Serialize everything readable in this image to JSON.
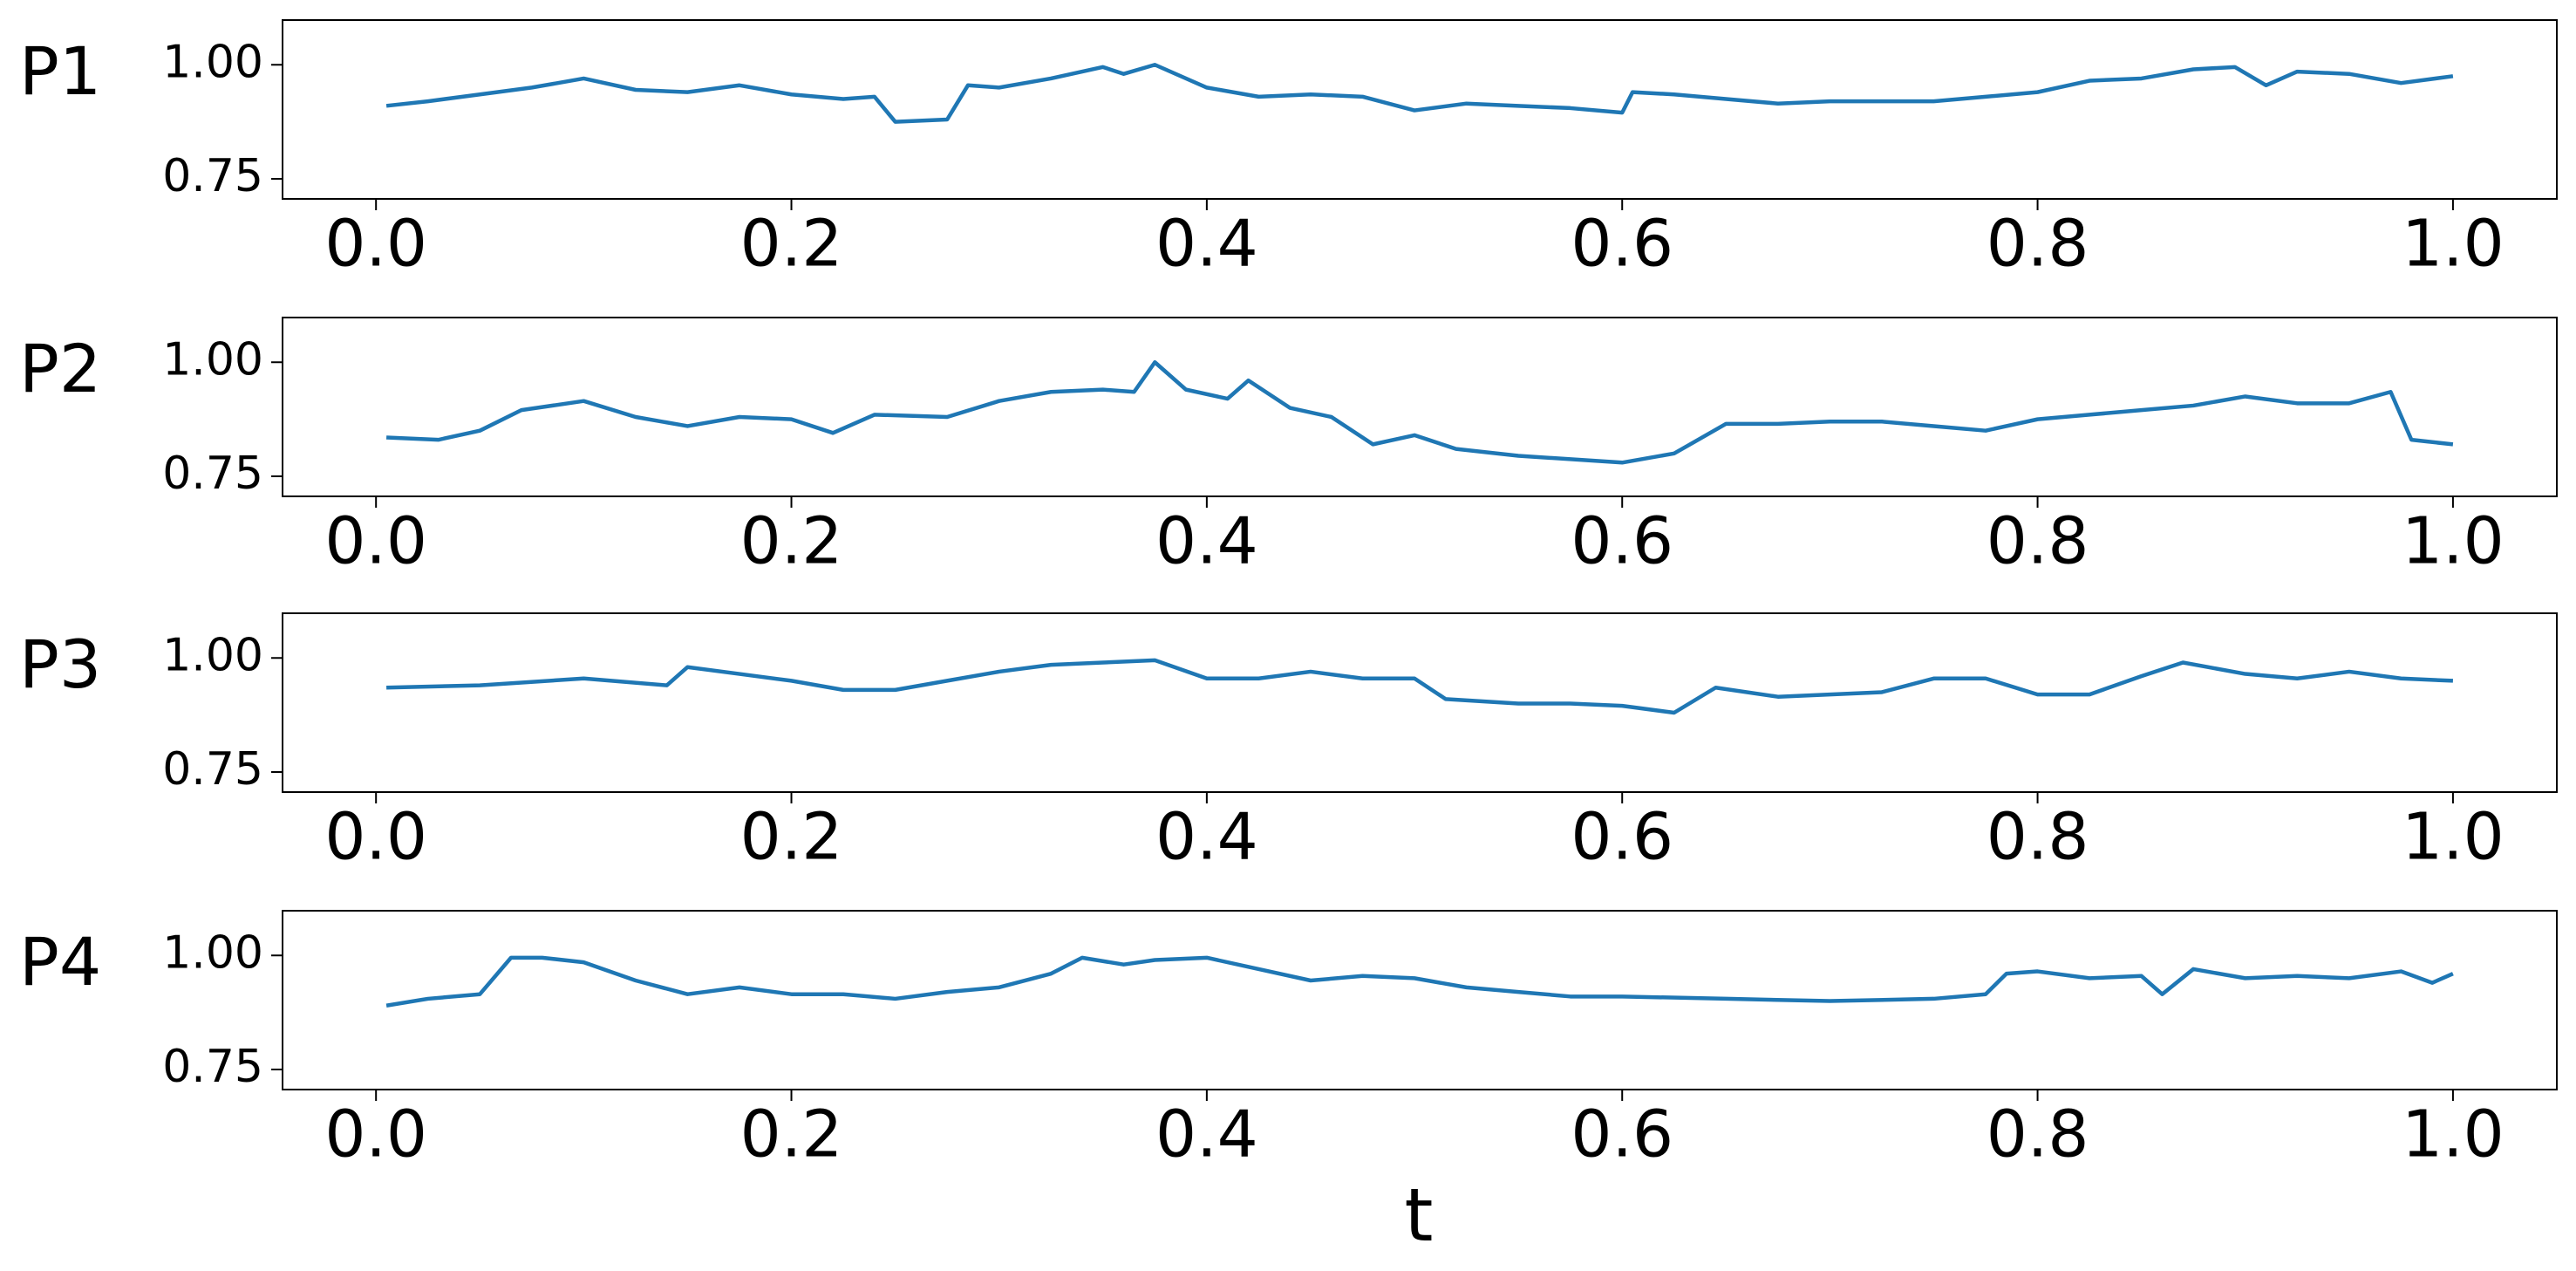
{
  "chart_data": [
    {
      "type": "line",
      "ylabel": "P1",
      "x": [
        0.005,
        0.025,
        0.05,
        0.075,
        0.1,
        0.125,
        0.15,
        0.175,
        0.2,
        0.225,
        0.24,
        0.25,
        0.275,
        0.285,
        0.3,
        0.325,
        0.35,
        0.36,
        0.375,
        0.4,
        0.425,
        0.45,
        0.475,
        0.5,
        0.525,
        0.55,
        0.575,
        0.6,
        0.605,
        0.625,
        0.65,
        0.675,
        0.7,
        0.725,
        0.75,
        0.775,
        0.8,
        0.825,
        0.85,
        0.875,
        0.895,
        0.91,
        0.925,
        0.95,
        0.975,
        1.0
      ],
      "series": [
        {
          "color": "#1f77b4",
          "values": [
            0.91,
            0.92,
            0.935,
            0.95,
            0.97,
            0.945,
            0.94,
            0.955,
            0.935,
            0.925,
            0.93,
            0.875,
            0.88,
            0.955,
            0.95,
            0.97,
            0.995,
            0.98,
            1.0,
            0.95,
            0.93,
            0.935,
            0.93,
            0.9,
            0.915,
            0.91,
            0.905,
            0.895,
            0.94,
            0.935,
            0.925,
            0.915,
            0.92,
            0.92,
            0.92,
            0.93,
            0.94,
            0.965,
            0.97,
            0.99,
            0.995,
            0.955,
            0.985,
            0.98,
            0.96,
            0.975
          ]
        }
      ],
      "xlim": [
        -0.045,
        1.05
      ],
      "ylim": [
        0.706,
        1.098
      ],
      "xticks": [
        {
          "value": 0,
          "label": "0.0"
        },
        {
          "value": 0.2,
          "label": "0.2"
        },
        {
          "value": 0.4,
          "label": "0.4"
        },
        {
          "value": 0.6,
          "label": "0.6"
        },
        {
          "value": 0.8,
          "label": "0.8"
        },
        {
          "value": 1,
          "label": "1.0"
        }
      ],
      "yticks": [
        {
          "value": 0.75,
          "label": "0.75"
        },
        {
          "value": 1,
          "label": "1.00"
        }
      ]
    },
    {
      "type": "line",
      "ylabel": "P2",
      "x": [
        0.005,
        0.03,
        0.05,
        0.07,
        0.1,
        0.125,
        0.15,
        0.175,
        0.2,
        0.22,
        0.24,
        0.275,
        0.3,
        0.325,
        0.35,
        0.365,
        0.375,
        0.39,
        0.41,
        0.42,
        0.44,
        0.46,
        0.48,
        0.5,
        0.52,
        0.55,
        0.6,
        0.625,
        0.65,
        0.675,
        0.7,
        0.725,
        0.75,
        0.775,
        0.8,
        0.825,
        0.85,
        0.875,
        0.9,
        0.925,
        0.95,
        0.97,
        0.98,
        1.0
      ],
      "series": [
        {
          "color": "#1f77b4",
          "values": [
            0.835,
            0.83,
            0.85,
            0.895,
            0.915,
            0.88,
            0.86,
            0.88,
            0.875,
            0.845,
            0.885,
            0.88,
            0.915,
            0.935,
            0.94,
            0.935,
            1.0,
            0.94,
            0.92,
            0.96,
            0.9,
            0.88,
            0.82,
            0.84,
            0.81,
            0.795,
            0.78,
            0.8,
            0.865,
            0.865,
            0.87,
            0.87,
            0.86,
            0.85,
            0.875,
            0.885,
            0.895,
            0.905,
            0.925,
            0.91,
            0.91,
            0.935,
            0.83,
            0.82
          ]
        }
      ],
      "xlim": [
        -0.045,
        1.05
      ],
      "ylim": [
        0.706,
        1.098
      ],
      "xticks": [
        {
          "value": 0,
          "label": "0.0"
        },
        {
          "value": 0.2,
          "label": "0.2"
        },
        {
          "value": 0.4,
          "label": "0.4"
        },
        {
          "value": 0.6,
          "label": "0.6"
        },
        {
          "value": 0.8,
          "label": "0.8"
        },
        {
          "value": 1,
          "label": "1.0"
        }
      ],
      "yticks": [
        {
          "value": 0.75,
          "label": "0.75"
        },
        {
          "value": 1,
          "label": "1.00"
        }
      ]
    },
    {
      "type": "line",
      "ylabel": "P3",
      "x": [
        0.005,
        0.05,
        0.1,
        0.14,
        0.15,
        0.175,
        0.2,
        0.225,
        0.25,
        0.275,
        0.3,
        0.325,
        0.35,
        0.375,
        0.4,
        0.425,
        0.45,
        0.475,
        0.5,
        0.515,
        0.55,
        0.575,
        0.6,
        0.625,
        0.645,
        0.675,
        0.7,
        0.725,
        0.75,
        0.775,
        0.8,
        0.825,
        0.85,
        0.87,
        0.9,
        0.925,
        0.95,
        0.975,
        1.0
      ],
      "series": [
        {
          "color": "#1f77b4",
          "values": [
            0.935,
            0.94,
            0.955,
            0.94,
            0.98,
            0.965,
            0.95,
            0.93,
            0.93,
            0.95,
            0.97,
            0.985,
            0.99,
            0.995,
            0.955,
            0.955,
            0.97,
            0.955,
            0.955,
            0.91,
            0.9,
            0.9,
            0.895,
            0.88,
            0.935,
            0.915,
            0.92,
            0.925,
            0.955,
            0.955,
            0.92,
            0.92,
            0.96,
            0.99,
            0.965,
            0.955,
            0.97,
            0.955,
            0.95
          ]
        }
      ],
      "xlim": [
        -0.045,
        1.05
      ],
      "ylim": [
        0.706,
        1.098
      ],
      "xticks": [
        {
          "value": 0,
          "label": "0.0"
        },
        {
          "value": 0.2,
          "label": "0.2"
        },
        {
          "value": 0.4,
          "label": "0.4"
        },
        {
          "value": 0.6,
          "label": "0.6"
        },
        {
          "value": 0.8,
          "label": "0.8"
        },
        {
          "value": 1,
          "label": "1.0"
        }
      ],
      "yticks": [
        {
          "value": 0.75,
          "label": "0.75"
        },
        {
          "value": 1,
          "label": "1.00"
        }
      ]
    },
    {
      "type": "line",
      "ylabel": "P4",
      "xlabel": "t",
      "x": [
        0.005,
        0.025,
        0.05,
        0.065,
        0.08,
        0.1,
        0.125,
        0.15,
        0.175,
        0.2,
        0.225,
        0.25,
        0.275,
        0.3,
        0.325,
        0.34,
        0.36,
        0.375,
        0.4,
        0.425,
        0.45,
        0.475,
        0.5,
        0.525,
        0.55,
        0.575,
        0.6,
        0.65,
        0.7,
        0.75,
        0.775,
        0.785,
        0.8,
        0.825,
        0.85,
        0.86,
        0.875,
        0.9,
        0.925,
        0.95,
        0.975,
        0.99,
        1.0
      ],
      "series": [
        {
          "color": "#1f77b4",
          "values": [
            0.89,
            0.905,
            0.915,
            0.995,
            0.995,
            0.985,
            0.945,
            0.915,
            0.93,
            0.915,
            0.915,
            0.905,
            0.92,
            0.93,
            0.96,
            0.995,
            0.98,
            0.99,
            0.995,
            0.97,
            0.945,
            0.955,
            0.95,
            0.93,
            0.92,
            0.91,
            0.91,
            0.905,
            0.9,
            0.905,
            0.915,
            0.96,
            0.965,
            0.95,
            0.955,
            0.915,
            0.97,
            0.95,
            0.955,
            0.95,
            0.965,
            0.94,
            0.96
          ]
        }
      ],
      "xlim": [
        -0.045,
        1.05
      ],
      "ylim": [
        0.706,
        1.098
      ],
      "xticks": [
        {
          "value": 0,
          "label": "0.0"
        },
        {
          "value": 0.2,
          "label": "0.2"
        },
        {
          "value": 0.4,
          "label": "0.4"
        },
        {
          "value": 0.6,
          "label": "0.6"
        },
        {
          "value": 0.8,
          "label": "0.8"
        },
        {
          "value": 1,
          "label": "1.0"
        }
      ],
      "yticks": [
        {
          "value": 0.75,
          "label": "0.75"
        },
        {
          "value": 1,
          "label": "1.00"
        }
      ]
    }
  ]
}
